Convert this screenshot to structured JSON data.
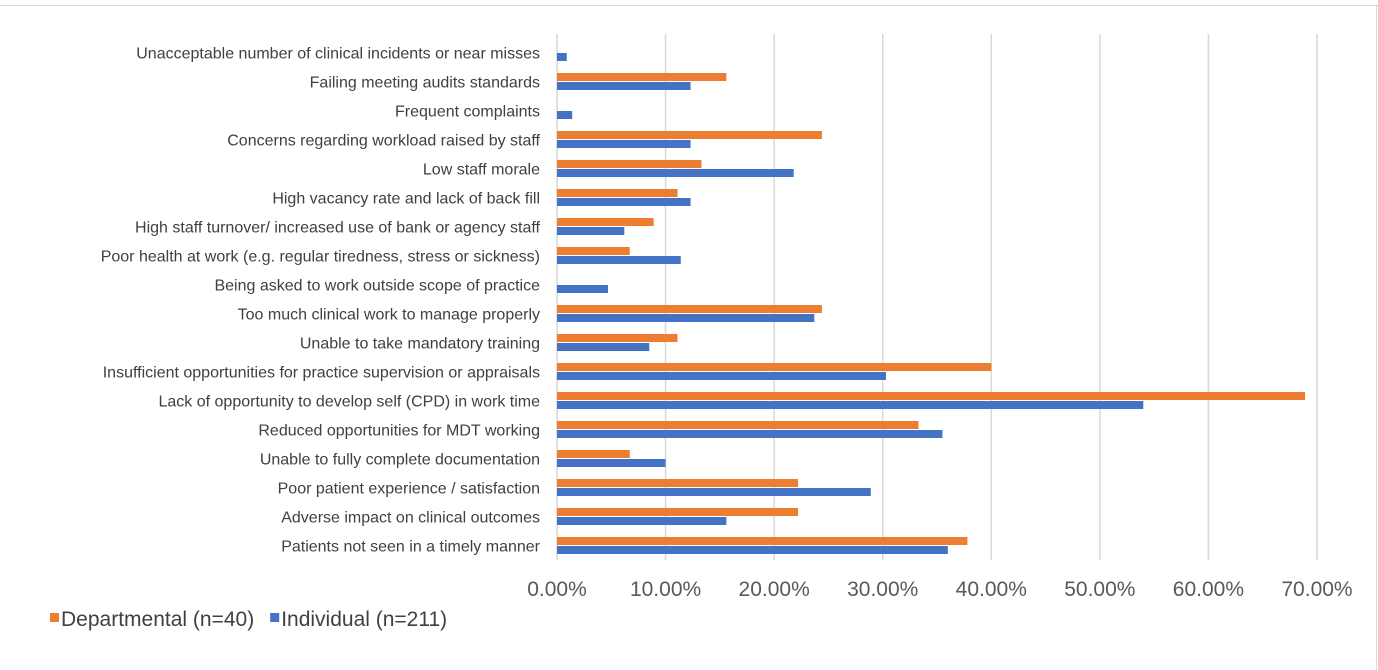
{
  "chart_data": {
    "type": "bar",
    "orientation": "horizontal",
    "categories": [
      "Unacceptable number of clinical incidents or near misses",
      "Failing meeting audits standards",
      "Frequent complaints",
      "Concerns regarding workload raised by staff",
      "Low staff morale",
      "High vacancy rate and lack of back fill",
      "High staff turnover/ increased use of bank or agency staff",
      "Poor health at work (e.g. regular tiredness, stress or sickness)",
      "Being asked to work outside scope of practice",
      "Too much clinical work to manage properly",
      "Unable to take mandatory training",
      "Insufficient opportunities for practice supervision or appraisals",
      "Lack of opportunity to develop self (CPD) in work time",
      "Reduced opportunities for MDT working",
      "Unable to fully complete documentation",
      "Poor patient experience / satisfaction",
      "Adverse impact on clinical outcomes",
      "Patients not seen in a timely manner"
    ],
    "series": [
      {
        "name": "Departmental (n=40)",
        "color": "#ED7D31",
        "values": [
          0,
          15.6,
          0,
          24.4,
          13.3,
          11.1,
          8.9,
          6.7,
          0,
          24.4,
          11.1,
          40.0,
          68.9,
          33.3,
          6.7,
          22.2,
          22.2,
          37.8
        ]
      },
      {
        "name": "Individual (n=211)",
        "color": "#4472C4",
        "values": [
          0.9,
          12.3,
          1.4,
          12.3,
          21.8,
          12.3,
          6.2,
          11.4,
          4.7,
          23.7,
          8.5,
          30.3,
          54.0,
          35.5,
          10.0,
          28.9,
          15.6,
          36.0
        ]
      }
    ],
    "xlim": [
      0,
      70
    ],
    "xticks": [
      "0.00%",
      "10.00%",
      "20.00%",
      "30.00%",
      "40.00%",
      "50.00%",
      "60.00%",
      "70.00%"
    ],
    "grid": true,
    "legend": "bottom-left"
  }
}
